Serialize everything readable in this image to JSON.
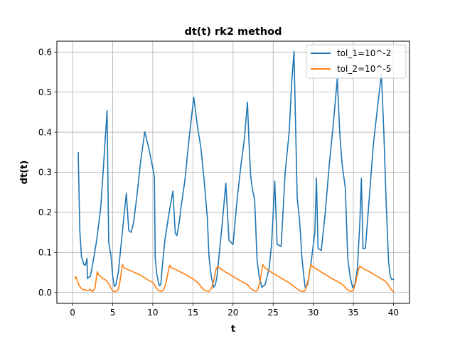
{
  "chart_data": {
    "type": "line",
    "title": "dt(t) rk2 method",
    "xlabel": "t",
    "ylabel": "dt(t)",
    "xlim": [
      -1.96,
      42.0
    ],
    "ylim": [
      -0.027,
      0.627
    ],
    "xticks": [
      0,
      5,
      10,
      15,
      20,
      25,
      30,
      35,
      40
    ],
    "yticks": [
      0.0,
      0.1,
      0.2,
      0.3,
      0.4,
      0.5,
      0.6
    ],
    "xtick_labels": [
      "0",
      "5",
      "10",
      "15",
      "20",
      "25",
      "30",
      "35",
      "40"
    ],
    "ytick_labels": [
      "0.0",
      "0.1",
      "0.2",
      "0.3",
      "0.4",
      "0.5",
      "0.6"
    ],
    "grid": true,
    "legend_position": "top-right",
    "series": [
      {
        "name": "tol_1=10^-2",
        "color": "#1f77b4",
        "x": [
          0.7,
          0.9,
          1.1,
          1.4,
          1.6,
          1.8,
          1.85,
          2.0,
          2.2,
          2.5,
          3.0,
          3.5,
          3.9,
          4.3,
          4.5,
          4.8,
          5.0,
          5.2,
          5.4,
          5.7,
          6.0,
          6.3,
          6.7,
          7.0,
          7.3,
          7.6,
          8.0,
          8.5,
          9.0,
          9.5,
          10.0,
          10.2,
          10.3,
          10.5,
          10.8,
          11.0,
          11.2,
          11.5,
          12.0,
          12.5,
          12.8,
          13.0,
          13.3,
          13.5,
          14.0,
          14.5,
          15.1,
          15.6,
          16.0,
          16.4,
          16.8,
          17.0,
          17.3,
          17.6,
          17.8,
          18.0,
          18.2,
          18.5,
          18.8,
          19.1,
          19.5,
          20.0,
          20.5,
          21.0,
          21.4,
          21.8,
          22.0,
          22.2,
          22.4,
          22.7,
          23.0,
          23.3,
          23.6,
          24.0,
          24.5,
          24.8,
          25.0,
          25.2,
          25.5,
          26.0,
          26.5,
          27.0,
          27.3,
          27.6,
          28.0,
          28.3,
          28.6,
          28.8,
          29.0,
          29.3,
          29.7,
          30.2,
          30.4,
          30.6,
          31.0,
          31.5,
          32.0,
          32.5,
          33.0,
          33.3,
          33.6,
          34.0,
          34.3,
          34.6,
          34.9,
          35.2,
          35.5,
          35.8,
          36.0,
          36.2,
          36.5,
          37.0,
          37.5,
          38.0,
          38.5,
          38.8,
          39.1,
          39.4,
          39.6,
          39.8,
          40.0
        ],
        "y": [
          0.349,
          0.155,
          0.09,
          0.07,
          0.068,
          0.085,
          0.035,
          0.038,
          0.04,
          0.07,
          0.13,
          0.21,
          0.33,
          0.454,
          0.125,
          0.09,
          0.04,
          0.015,
          0.02,
          0.05,
          0.11,
          0.17,
          0.248,
          0.155,
          0.15,
          0.175,
          0.238,
          0.33,
          0.401,
          0.36,
          0.31,
          0.288,
          0.085,
          0.045,
          0.017,
          0.02,
          0.07,
          0.13,
          0.195,
          0.253,
          0.148,
          0.142,
          0.175,
          0.21,
          0.28,
          0.38,
          0.487,
          0.41,
          0.36,
          0.28,
          0.185,
          0.09,
          0.038,
          0.013,
          0.02,
          0.04,
          0.08,
          0.14,
          0.205,
          0.273,
          0.13,
          0.12,
          0.23,
          0.32,
          0.38,
          0.475,
          0.37,
          0.29,
          0.26,
          0.23,
          0.08,
          0.035,
          0.013,
          0.02,
          0.06,
          0.12,
          0.195,
          0.278,
          0.12,
          0.115,
          0.3,
          0.4,
          0.52,
          0.601,
          0.235,
          0.18,
          0.085,
          0.045,
          0.013,
          0.02,
          0.07,
          0.15,
          0.286,
          0.11,
          0.105,
          0.2,
          0.32,
          0.42,
          0.534,
          0.4,
          0.32,
          0.26,
          0.085,
          0.04,
          0.013,
          0.02,
          0.06,
          0.17,
          0.285,
          0.11,
          0.11,
          0.24,
          0.37,
          0.46,
          0.545,
          0.4,
          0.22,
          0.075,
          0.04,
          0.032,
          0.033
        ]
      },
      {
        "name": "tol_2=10^-5",
        "color": "#ff7f0e",
        "x": [
          0.3,
          0.4,
          0.6,
          0.8,
          1.0,
          1.3,
          1.6,
          1.8,
          2.0,
          2.2,
          2.5,
          2.8,
          3.0,
          3.1,
          3.2,
          3.5,
          3.8,
          4.2,
          4.6,
          4.8,
          5.0,
          5.3,
          5.6,
          5.8,
          6.0,
          6.2,
          6.4,
          6.8,
          7.5,
          8.5,
          9.5,
          10.0,
          10.2,
          10.4,
          10.7,
          11.0,
          11.3,
          11.6,
          11.9,
          12.1,
          12.3,
          12.8,
          13.5,
          14.5,
          15.3,
          15.8,
          16.2,
          16.6,
          17.0,
          17.3,
          17.6,
          17.9,
          18.1,
          18.4,
          19.0,
          20.0,
          21.0,
          21.8,
          22.2,
          22.6,
          22.9,
          23.1,
          23.4,
          23.7,
          23.9,
          24.1,
          24.5,
          25.5,
          26.5,
          27.3,
          27.8,
          28.2,
          28.6,
          28.9,
          29.1,
          29.4,
          29.7,
          29.9,
          30.2,
          30.6,
          31.5,
          32.5,
          33.5,
          33.9,
          34.2,
          34.5,
          34.8,
          35.0,
          35.3,
          35.6,
          35.8,
          36.2,
          37.0,
          38.0,
          39.0,
          39.4,
          39.7,
          40.0
        ],
        "y": [
          0.035,
          0.04,
          0.028,
          0.018,
          0.012,
          0.007,
          0.007,
          0.005,
          0.005,
          0.008,
          0.002,
          0.012,
          0.042,
          0.052,
          0.045,
          0.04,
          0.035,
          0.03,
          0.02,
          0.01,
          0.004,
          0.002,
          0.005,
          0.015,
          0.04,
          0.07,
          0.062,
          0.058,
          0.052,
          0.043,
          0.03,
          0.025,
          0.02,
          0.012,
          0.005,
          0.003,
          0.005,
          0.02,
          0.05,
          0.068,
          0.062,
          0.058,
          0.051,
          0.04,
          0.03,
          0.02,
          0.01,
          0.004,
          0.003,
          0.01,
          0.03,
          0.06,
          0.065,
          0.06,
          0.052,
          0.04,
          0.028,
          0.02,
          0.01,
          0.005,
          0.003,
          0.008,
          0.03,
          0.07,
          0.064,
          0.06,
          0.054,
          0.042,
          0.03,
          0.02,
          0.012,
          0.006,
          0.003,
          0.003,
          0.01,
          0.035,
          0.07,
          0.065,
          0.061,
          0.056,
          0.045,
          0.033,
          0.022,
          0.015,
          0.008,
          0.004,
          0.003,
          0.006,
          0.025,
          0.055,
          0.066,
          0.06,
          0.052,
          0.04,
          0.028,
          0.018,
          0.008,
          0.002
        ]
      }
    ]
  }
}
